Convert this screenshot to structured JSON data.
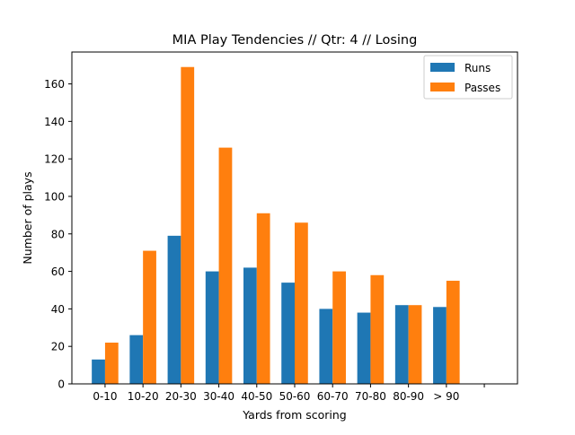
{
  "chart_data": {
    "type": "bar",
    "title": "MIA Play Tendencies // Qtr: 4 // Losing",
    "xlabel": "Yards from scoring",
    "ylabel": "Number of plays",
    "categories": [
      "0-10",
      "10-20",
      "20-30",
      "30-40",
      "40-50",
      "50-60",
      "60-70",
      "70-80",
      "80-90",
      "> 90",
      ""
    ],
    "series": [
      {
        "name": "Runs",
        "color": "#1f77b4",
        "values": [
          13,
          26,
          79,
          60,
          62,
          54,
          40,
          38,
          42,
          41,
          0
        ]
      },
      {
        "name": "Passes",
        "color": "#ff7f0e",
        "values": [
          22,
          71,
          169,
          126,
          91,
          86,
          60,
          58,
          42,
          55,
          0
        ]
      }
    ],
    "ylim": [
      0,
      177
    ],
    "yticks": [
      0,
      20,
      40,
      60,
      80,
      100,
      120,
      140,
      160
    ],
    "grid": false,
    "legend": "top-right"
  }
}
